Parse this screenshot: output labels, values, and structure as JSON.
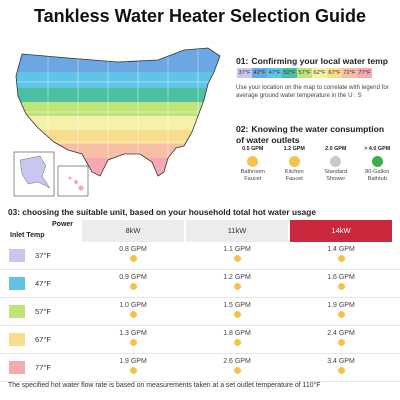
{
  "title": "Tankless Water Heater Selection Guide",
  "step1": {
    "num": "01:",
    "heading": "Confirming your local water temp",
    "description": "Use your location on the map to correlate with legend for average ground water temperature in the U . S"
  },
  "legend": [
    {
      "label": "37°F",
      "color": "#c9c6ef"
    },
    {
      "label": "42°F",
      "color": "#6aa7e3"
    },
    {
      "label": "47°F",
      "color": "#5fc4e8"
    },
    {
      "label": "52°F",
      "color": "#4cc0a0"
    },
    {
      "label": "57°F",
      "color": "#bfe57a"
    },
    {
      "label": "62°F",
      "color": "#f6f1a8"
    },
    {
      "label": "67°F",
      "color": "#f8dc8f"
    },
    {
      "label": "72°F",
      "color": "#f6bfa6"
    },
    {
      "label": "77°F",
      "color": "#f6a9b2"
    }
  ],
  "step2": {
    "num": "02:",
    "heading_line1": "Knowing the water consumption",
    "heading_line2": "of water outlets"
  },
  "outlets": [
    {
      "gpm": "0.5 GPM",
      "label_line1": "Bathroom",
      "label_line2": "Faucet",
      "icon": "faucet-icon",
      "color": "#f3c34d"
    },
    {
      "gpm": "1.2 GPM",
      "label_line1": "Kitchen",
      "label_line2": "Faucet",
      "icon": "kitchen-faucet-icon",
      "color": "#f3c34d"
    },
    {
      "gpm": "2.0 GPM",
      "label_line1": "Standard",
      "label_line2": "Shower",
      "icon": "shower-icon",
      "color": "#c9c9c9"
    },
    {
      "gpm": "> 4.0 GPM",
      "label_line1": "80-Gallon",
      "label_line2": "Bathtub",
      "icon": "bathtub-icon",
      "color": "#3fae4a"
    }
  ],
  "step3": {
    "text": "03:  choosing the suitable unit, based on your household total hot water usage"
  },
  "table": {
    "power_label": "Power",
    "inlet_label": "Inlet Temp",
    "columns": [
      "8kW",
      "11kW",
      "14kW"
    ],
    "highlight_column_color": "#c9283d",
    "rows": [
      {
        "temp": "37°F",
        "color": "#c9c6ef",
        "values": [
          "0.8 GPM",
          "1.1 GPM",
          "1.4 GPM"
        ]
      },
      {
        "temp": "47°F",
        "color": "#5fc4e8",
        "values": [
          "0.9 GPM",
          "1.2 GPM",
          "1.6 GPM"
        ]
      },
      {
        "temp": "57°F",
        "color": "#bfe57a",
        "values": [
          "1.0 GPM",
          "1.5 GPM",
          "1.9 GPM"
        ]
      },
      {
        "temp": "67°F",
        "color": "#f8dc8f",
        "values": [
          "1.3 GPM",
          "1.8 GPM",
          "2.4 GPM"
        ]
      },
      {
        "temp": "77°F",
        "color": "#f6a9b2",
        "values": [
          "1.9 GPM",
          "2.6 GPM",
          "3.4 GPM"
        ]
      }
    ]
  },
  "footnote": "The specified hot water flow rate is based on measurements taken at a set outlet temperature of 110°F"
}
